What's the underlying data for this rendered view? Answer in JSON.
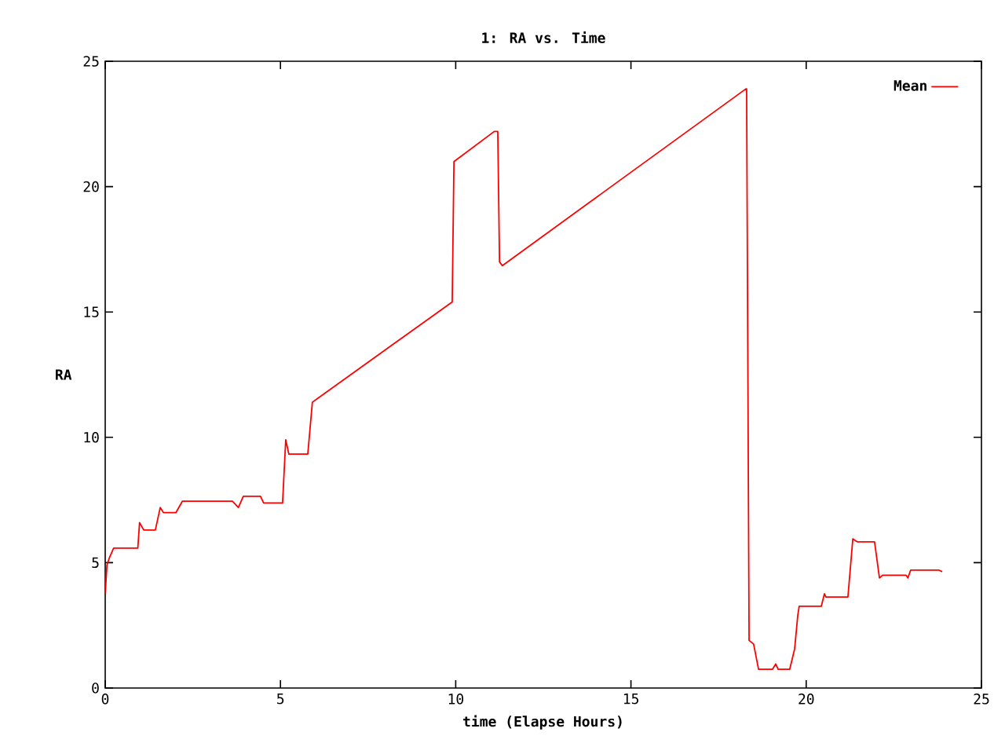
{
  "chart_data": {
    "type": "line",
    "title": "1: RA vs. Time",
    "xlabel": "time (Elapse Hours)",
    "ylabel": "RA",
    "xlim": [
      0,
      25
    ],
    "ylim": [
      0,
      25
    ],
    "xticks": [
      0,
      5,
      10,
      15,
      20,
      25
    ],
    "yticks": [
      0,
      5,
      10,
      15,
      20,
      25
    ],
    "legend": "top right",
    "grid": false,
    "marker": "none",
    "line_style": "solid",
    "series": [
      {
        "name": "Mean",
        "color": "#ff0000",
        "x": [
          0,
          0.05,
          0.12,
          0.24,
          0.93,
          0.98,
          1.1,
          1.43,
          1.57,
          1.66,
          2.02,
          2.2,
          3.63,
          3.8,
          3.94,
          4.43,
          4.52,
          5.06,
          5.15,
          5.24,
          5.78,
          5.91,
          9.9,
          9.95,
          11.1,
          11.2,
          11.25,
          11.33,
          18.28,
          18.3,
          18.37,
          18.5,
          18.64,
          19.04,
          19.13,
          19.2,
          19.53,
          19.67,
          19.76,
          19.8,
          20.43,
          20.52,
          20.56,
          21.19,
          21.33,
          21.46,
          21.95,
          22.09,
          22.18,
          22.85,
          22.9,
          22.98,
          23.79,
          23.88
        ],
        "values": [
          3.76,
          4.9,
          5.2,
          5.58,
          5.58,
          6.6,
          6.3,
          6.3,
          7.2,
          7.0,
          7.0,
          7.45,
          7.45,
          7.2,
          7.65,
          7.65,
          7.38,
          7.38,
          9.9,
          9.33,
          9.33,
          11.4,
          15.4,
          21.0,
          22.2,
          22.2,
          17.0,
          16.85,
          23.9,
          23.9,
          1.9,
          1.75,
          0.75,
          0.75,
          0.96,
          0.75,
          0.75,
          1.56,
          2.9,
          3.26,
          3.26,
          3.76,
          3.63,
          3.63,
          5.95,
          5.83,
          5.83,
          4.39,
          4.5,
          4.5,
          4.39,
          4.7,
          4.7,
          4.64
        ]
      }
    ]
  }
}
